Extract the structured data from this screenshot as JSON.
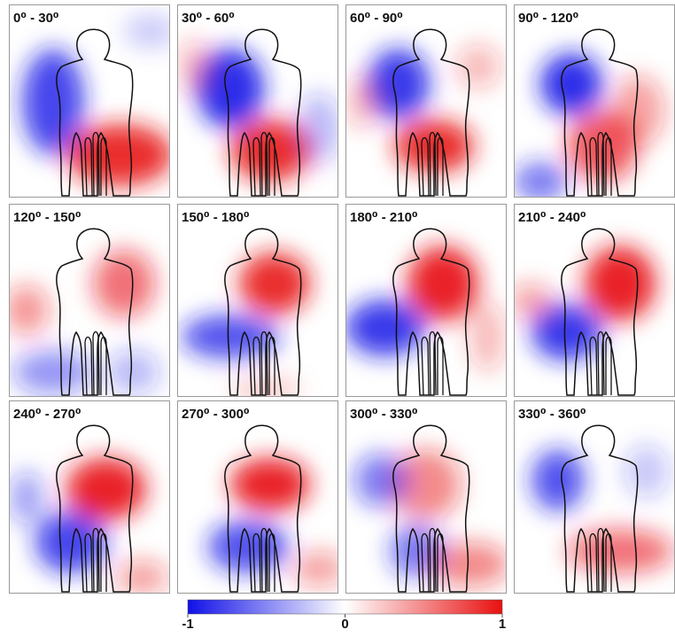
{
  "panels": [
    {
      "title": "0⁰ - 30⁰"
    },
    {
      "title": "30⁰ - 60⁰"
    },
    {
      "title": "60⁰ - 90⁰"
    },
    {
      "title": "90⁰ - 120⁰"
    },
    {
      "title": "120⁰ - 150⁰"
    },
    {
      "title": "150⁰ - 180⁰"
    },
    {
      "title": "180⁰ - 210⁰"
    },
    {
      "title": "210⁰ - 240⁰"
    },
    {
      "title": "240⁰ - 270⁰"
    },
    {
      "title": "270⁰ - 300⁰"
    },
    {
      "title": "300⁰ - 330⁰"
    },
    {
      "title": "330⁰ - 360⁰"
    }
  ],
  "colorbar": {
    "lim": [
      -1,
      1
    ],
    "ticks": [
      -1,
      0,
      1
    ]
  }
}
